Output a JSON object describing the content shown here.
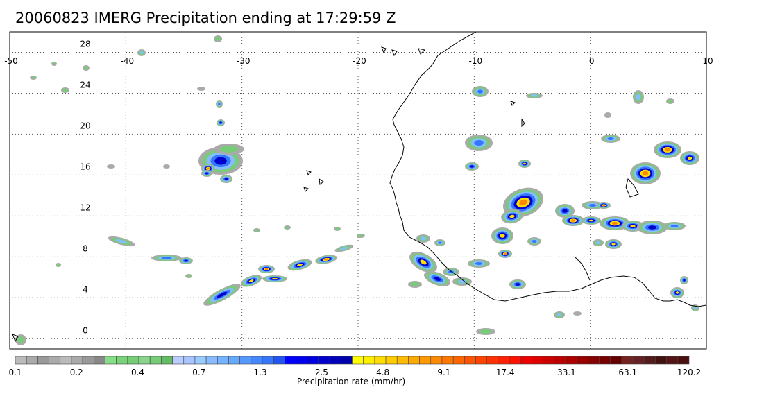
{
  "title": "20060823 IMERG Precipitation ending at 17:29:59 Z",
  "map": {
    "lon_labels": [
      "-50",
      "-40",
      "-30",
      "-20",
      "-10",
      "0",
      "10"
    ],
    "lat_labels": [
      "28",
      "24",
      "20",
      "16",
      "12",
      "8",
      "4",
      "0"
    ],
    "lon_range": [
      -50,
      10
    ],
    "lat_range": [
      -1,
      30
    ],
    "gridlines": "dotted"
  },
  "colorbar": {
    "label": "Precipitation rate (mm/hr)",
    "tick_labels": [
      "0.1",
      "0.2",
      "0.4",
      "0.7",
      "1.3",
      "2.5",
      "4.8",
      "9.1",
      "17.4",
      "33.1",
      "63.1",
      "120.2"
    ],
    "colors": [
      "#bbbbbb",
      "#aaaaaa",
      "#999999",
      "#aaaaaa",
      "#bbbbbb",
      "#aaaaaa",
      "#999999",
      "#888888",
      "#88dd88",
      "#77d477",
      "#77cc77",
      "#88d488",
      "#77cc77",
      "#66bb66",
      "#bbccff",
      "#aac4ff",
      "#99ccff",
      "#88bbff",
      "#77b4ff",
      "#66aaff",
      "#5599ff",
      "#4488ff",
      "#3377ff",
      "#2255ee",
      "#0000ff",
      "#0000ee",
      "#0000dd",
      "#0000cc",
      "#0000bb",
      "#0000aa",
      "#ffff00",
      "#ffee00",
      "#ffdd00",
      "#ffcc00",
      "#ffbb00",
      "#ffaa00",
      "#ff9900",
      "#ff8800",
      "#ff7700",
      "#ff6600",
      "#ff5500",
      "#ff4400",
      "#ff3300",
      "#ff2200",
      "#ff1100",
      "#ee0000",
      "#dd0000",
      "#cc0000",
      "#bb0000",
      "#aa0000",
      "#990000",
      "#880000",
      "#770000",
      "#660000",
      "#772222",
      "#662222",
      "#551a1a",
      "#441111",
      "#551515",
      "#4a1010"
    ]
  }
}
